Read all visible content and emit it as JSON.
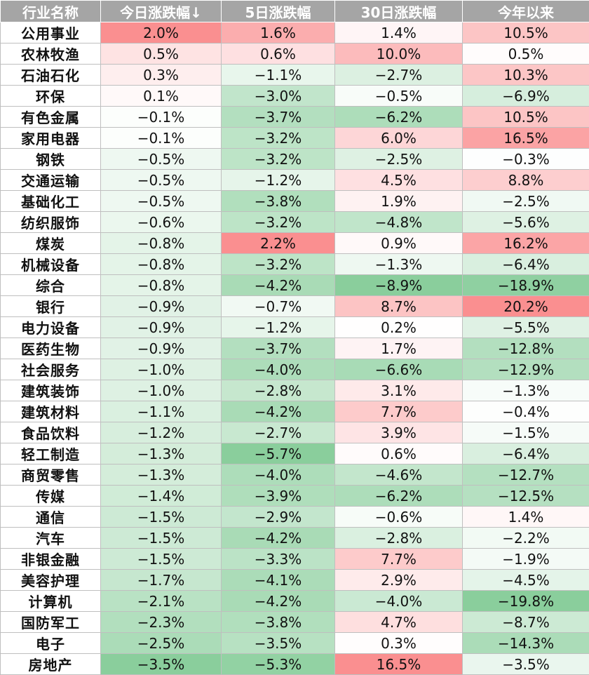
{
  "chart_data": {
    "type": "table",
    "columns": [
      "行业名称",
      "今日涨跌幅↓",
      "5日涨跌幅",
      "30日涨跌幅",
      "今年以来"
    ],
    "rows": [
      [
        "公用事业",
        "2.0%",
        "1.6%",
        "1.4%",
        "10.5%"
      ],
      [
        "农林牧渔",
        "0.5%",
        "0.6%",
        "10.0%",
        "0.5%"
      ],
      [
        "石油石化",
        "0.3%",
        "−1.1%",
        "−2.7%",
        "10.3%"
      ],
      [
        "环保",
        "0.1%",
        "−3.0%",
        "−0.5%",
        "−6.9%"
      ],
      [
        "有色金属",
        "−0.1%",
        "−3.7%",
        "−6.2%",
        "10.5%"
      ],
      [
        "家用电器",
        "−0.1%",
        "−3.2%",
        "6.0%",
        "16.5%"
      ],
      [
        "钢铁",
        "−0.5%",
        "−3.2%",
        "−2.5%",
        "−0.3%"
      ],
      [
        "交通运输",
        "−0.5%",
        "−1.2%",
        "4.5%",
        "8.8%"
      ],
      [
        "基础化工",
        "−0.5%",
        "−3.8%",
        "1.9%",
        "−2.5%"
      ],
      [
        "纺织服饰",
        "−0.6%",
        "−3.2%",
        "−4.8%",
        "−5.6%"
      ],
      [
        "煤炭",
        "−0.8%",
        "2.2%",
        "0.9%",
        "16.2%"
      ],
      [
        "机械设备",
        "−0.8%",
        "−3.2%",
        "−1.3%",
        "−6.4%"
      ],
      [
        "综合",
        "−0.8%",
        "−4.2%",
        "−8.9%",
        "−18.9%"
      ],
      [
        "银行",
        "−0.9%",
        "−0.7%",
        "8.7%",
        "20.2%"
      ],
      [
        "电力设备",
        "−0.9%",
        "−1.2%",
        "0.2%",
        "−5.5%"
      ],
      [
        "医药生物",
        "−0.9%",
        "−3.7%",
        "1.7%",
        "−12.8%"
      ],
      [
        "社会服务",
        "−1.0%",
        "−4.0%",
        "−6.6%",
        "−12.9%"
      ],
      [
        "建筑装饰",
        "−1.0%",
        "−2.8%",
        "3.1%",
        "−1.3%"
      ],
      [
        "建筑材料",
        "−1.1%",
        "−4.2%",
        "7.7%",
        "−0.4%"
      ],
      [
        "食品饮料",
        "−1.2%",
        "−2.7%",
        "3.9%",
        "−1.5%"
      ],
      [
        "轻工制造",
        "−1.3%",
        "−5.7%",
        "0.6%",
        "−6.4%"
      ],
      [
        "商贸零售",
        "−1.3%",
        "−4.0%",
        "−4.6%",
        "−12.7%"
      ],
      [
        "传媒",
        "−1.4%",
        "−3.9%",
        "−6.2%",
        "−12.5%"
      ],
      [
        "通信",
        "−1.5%",
        "−2.9%",
        "−0.6%",
        "1.4%"
      ],
      [
        "汽车",
        "−1.5%",
        "−4.2%",
        "−2.8%",
        "−2.2%"
      ],
      [
        "非银金融",
        "−1.5%",
        "−3.3%",
        "7.7%",
        "−1.9%"
      ],
      [
        "美容护理",
        "−1.7%",
        "−4.1%",
        "2.9%",
        "−4.5%"
      ],
      [
        "计算机",
        "−2.1%",
        "−4.2%",
        "−4.0%",
        "−19.8%"
      ],
      [
        "国防军工",
        "−2.3%",
        "−3.8%",
        "4.7%",
        "−8.7%"
      ],
      [
        "电子",
        "−2.5%",
        "−3.5%",
        "0.3%",
        "−14.3%"
      ],
      [
        "房地产",
        "−3.5%",
        "−5.3%",
        "16.5%",
        "−3.5%"
      ]
    ],
    "color_scale": {
      "positive": "#f8696b",
      "negative": "#63be7b",
      "neutral": "#ffffff"
    }
  }
}
